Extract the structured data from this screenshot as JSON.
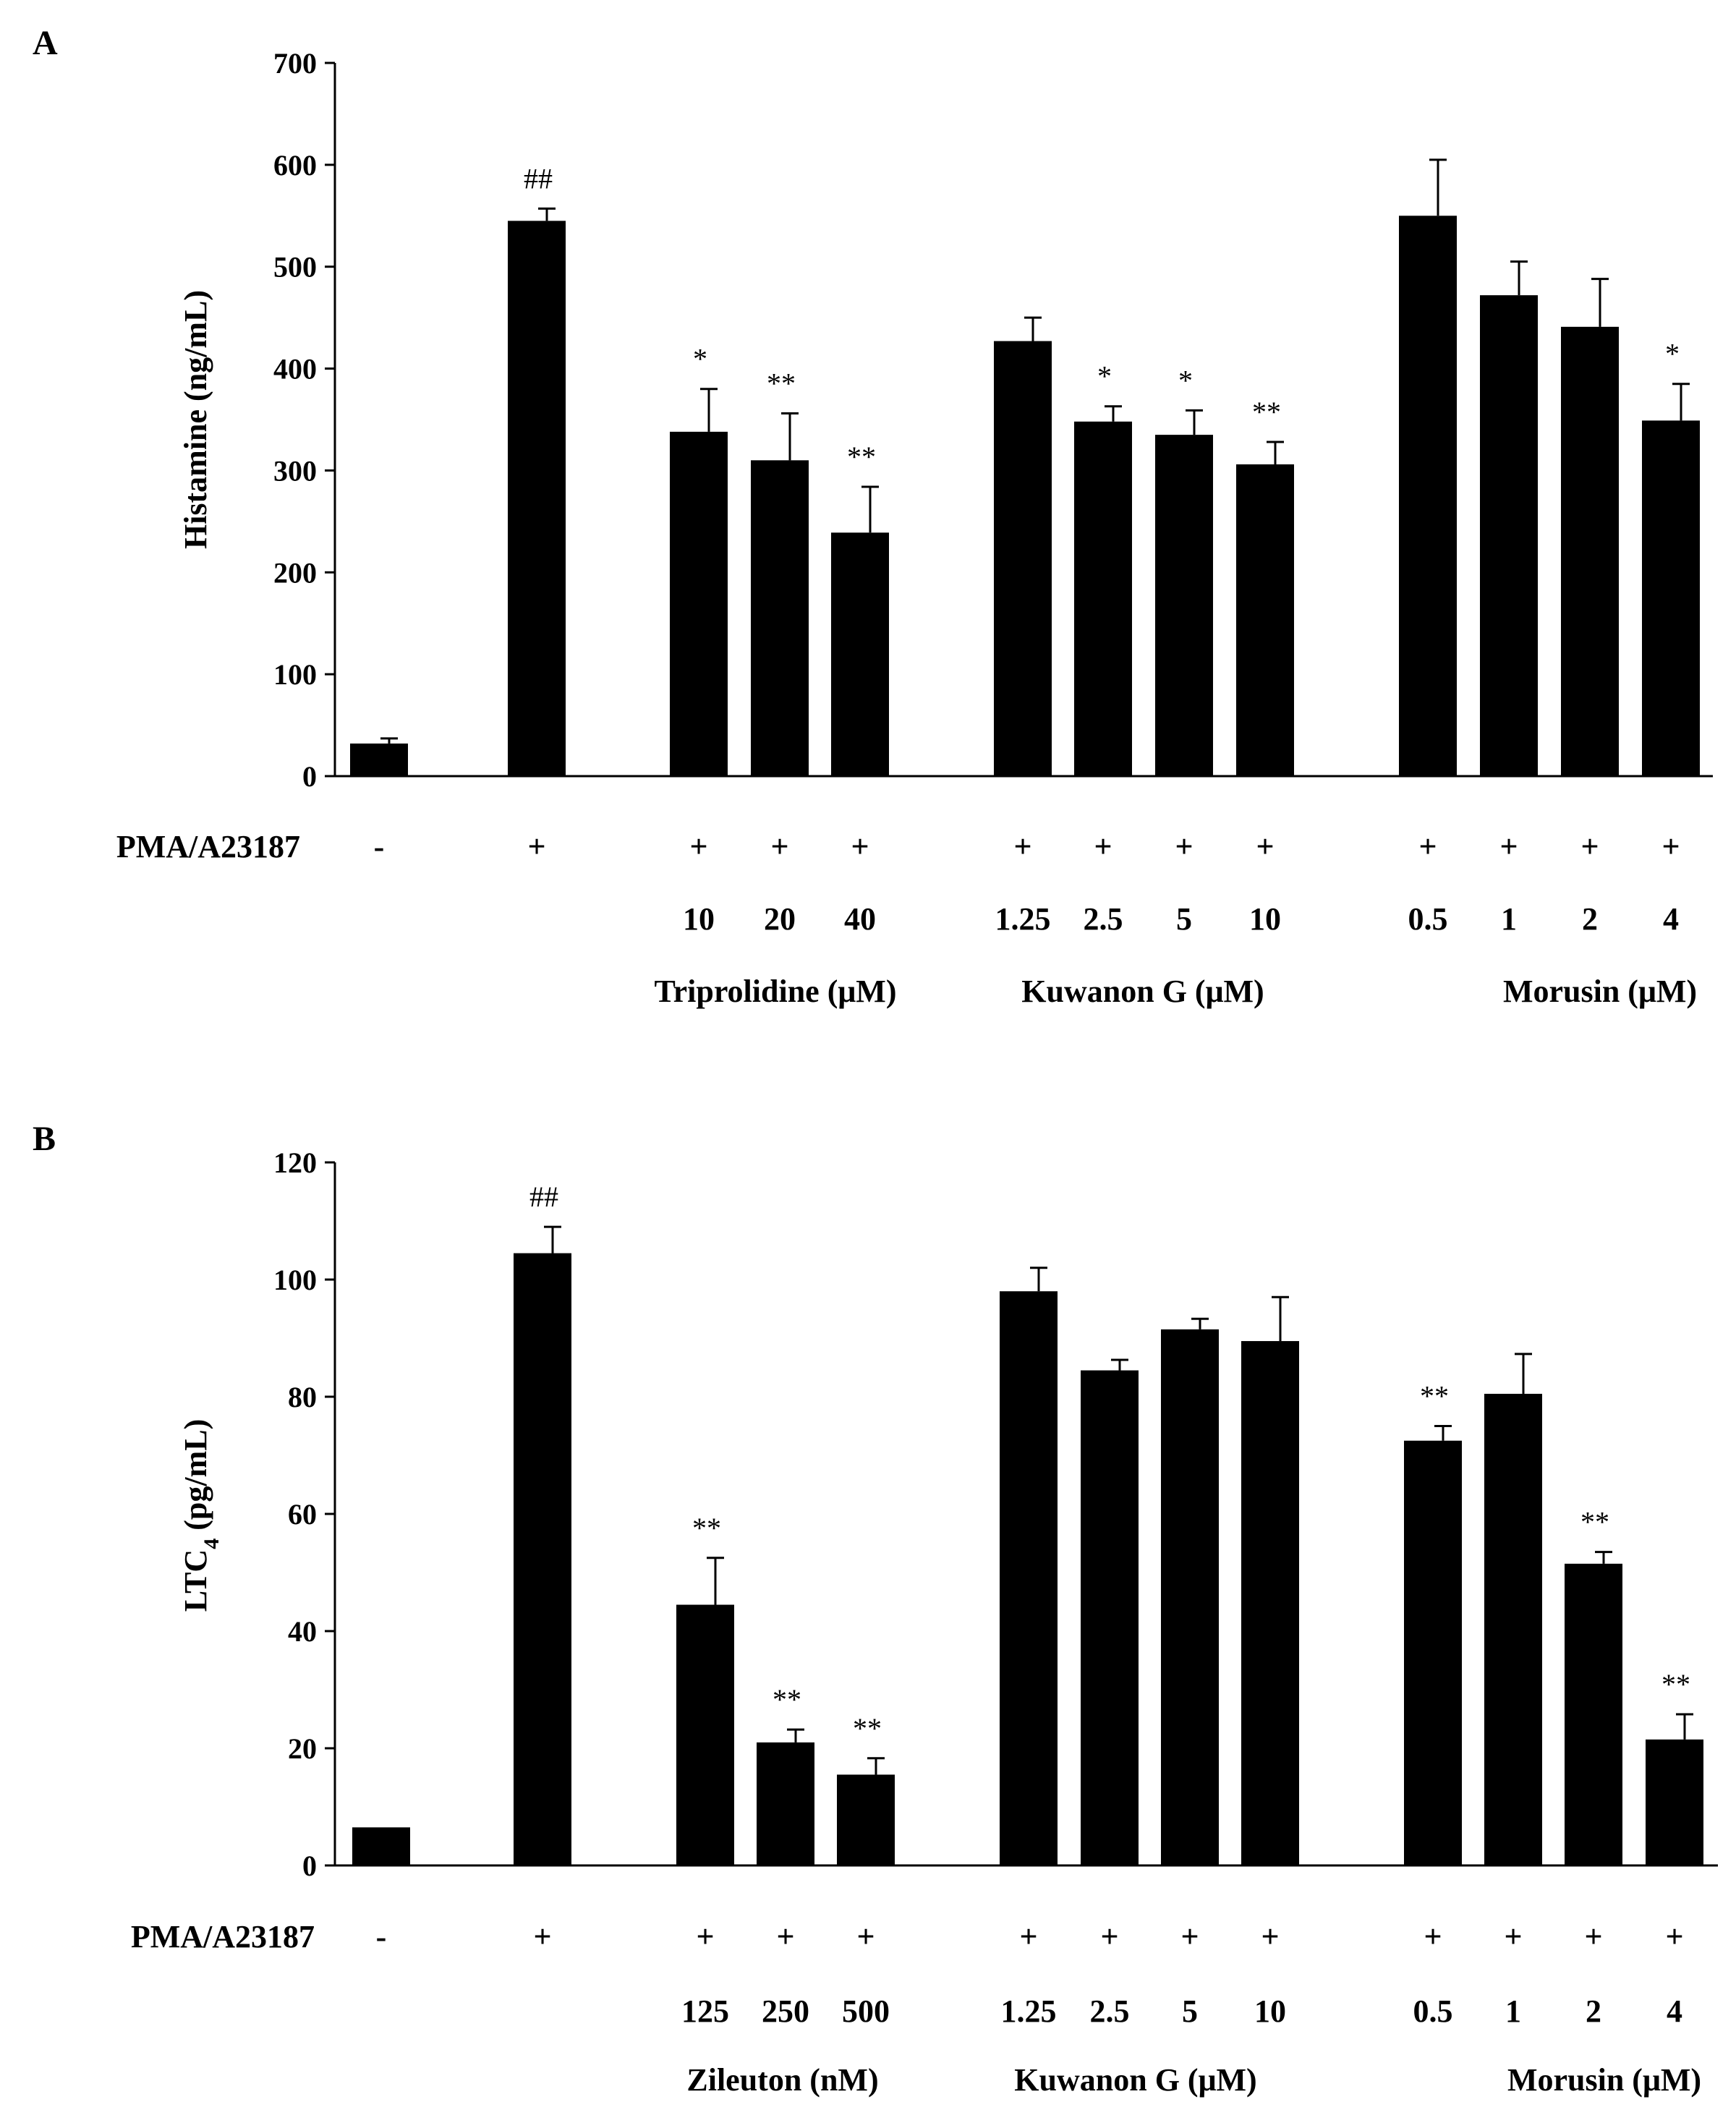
{
  "chart_data": [
    {
      "type": "bar",
      "panel": "A",
      "ylabel": "Histamine (ng/mL)",
      "ylim": [
        0,
        700
      ],
      "yticks": [
        0,
        100,
        200,
        300,
        400,
        500,
        600,
        700
      ],
      "row_label": "PMA/A23187",
      "bars": [
        {
          "value": 32,
          "error": 5,
          "sig": "",
          "pma": "-",
          "dose": ""
        },
        {
          "value": 545,
          "error": 12,
          "sig": "##",
          "pma": "+",
          "dose": ""
        },
        {
          "value": 338,
          "error": 42,
          "sig": "*",
          "pma": "+",
          "dose": "10"
        },
        {
          "value": 310,
          "error": 46,
          "sig": "**",
          "pma": "+",
          "dose": "20"
        },
        {
          "value": 239,
          "error": 45,
          "sig": "**",
          "pma": "+",
          "dose": "40"
        },
        {
          "value": 427,
          "error": 23,
          "sig": "",
          "pma": "+",
          "dose": "1.25"
        },
        {
          "value": 348,
          "error": 15,
          "sig": "*",
          "pma": "+",
          "dose": "2.5"
        },
        {
          "value": 335,
          "error": 24,
          "sig": "*",
          "pma": "+",
          "dose": "5"
        },
        {
          "value": 306,
          "error": 22,
          "sig": "**",
          "pma": "+",
          "dose": "10"
        },
        {
          "value": 550,
          "error": 55,
          "sig": "",
          "pma": "+",
          "dose": "0.5"
        },
        {
          "value": 472,
          "error": 33,
          "sig": "",
          "pma": "+",
          "dose": "1"
        },
        {
          "value": 441,
          "error": 47,
          "sig": "",
          "pma": "+",
          "dose": "2"
        },
        {
          "value": 349,
          "error": 36,
          "sig": "*",
          "pma": "+",
          "dose": "4"
        }
      ],
      "groups": [
        "Triprolidine (μM)",
        "Kuwanon G (μM)",
        "Morusin (μM)"
      ]
    },
    {
      "type": "bar",
      "panel": "B",
      "ylabel_main": "LTC",
      "ylabel_sub": "4",
      "ylabel_unit": " (pg/mL)",
      "ylim": [
        0,
        120
      ],
      "yticks": [
        0,
        20,
        40,
        60,
        80,
        100,
        120
      ],
      "row_label": "PMA/A23187",
      "bars": [
        {
          "value": 6.5,
          "error": 0,
          "sig": "",
          "pma": "-",
          "dose": ""
        },
        {
          "value": 104.5,
          "error": 4.5,
          "sig": "##",
          "pma": "+",
          "dose": ""
        },
        {
          "value": 44.5,
          "error": 8,
          "sig": "**",
          "pma": "+",
          "dose": "125"
        },
        {
          "value": 21,
          "error": 2.2,
          "sig": "**",
          "pma": "+",
          "dose": "250"
        },
        {
          "value": 15.5,
          "error": 2.8,
          "sig": "**",
          "pma": "+",
          "dose": "500"
        },
        {
          "value": 98,
          "error": 4,
          "sig": "",
          "pma": "+",
          "dose": "1.25"
        },
        {
          "value": 84.5,
          "error": 1.8,
          "sig": "",
          "pma": "+",
          "dose": "2.5"
        },
        {
          "value": 91.5,
          "error": 1.8,
          "sig": "",
          "pma": "+",
          "dose": "5"
        },
        {
          "value": 89.5,
          "error": 7.5,
          "sig": "",
          "pma": "+",
          "dose": "10"
        },
        {
          "value": 72.5,
          "error": 2.5,
          "sig": "**",
          "pma": "+",
          "dose": "0.5"
        },
        {
          "value": 80.5,
          "error": 6.8,
          "sig": "",
          "pma": "+",
          "dose": "1"
        },
        {
          "value": 51.5,
          "error": 2,
          "sig": "**",
          "pma": "+",
          "dose": "2"
        },
        {
          "value": 21.5,
          "error": 4.3,
          "sig": "**",
          "pma": "+",
          "dose": "4"
        }
      ],
      "groups": [
        "Zileuton (nM)",
        "Kuwanon G (μM)",
        "Morusin (μM)"
      ]
    }
  ]
}
